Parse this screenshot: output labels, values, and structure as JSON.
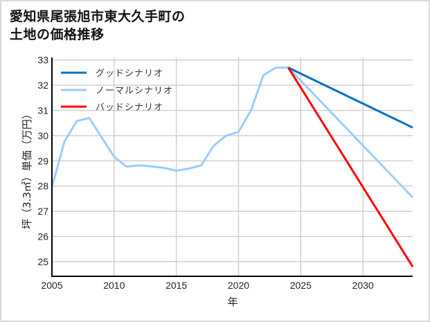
{
  "title": {
    "line1": "愛知県尾張旭市東大久手町の",
    "line2": "土地の価格推移"
  },
  "colors": {
    "good": "#0070c0",
    "normal": "#99ccff",
    "bad": "#ff0000",
    "grid": "#d0d0d0",
    "axis": "#000000",
    "border": "#d9d9d9"
  },
  "chart_data": {
    "type": "line",
    "title": "愛知県尾張旭市東大久手町の土地の価格推移",
    "xlabel": "年",
    "ylabel": "坪（3.3㎡）単価（万円）",
    "xlim": [
      2005,
      2034
    ],
    "ylim": [
      24.42,
      33.1
    ],
    "xticks": [
      2005,
      2010,
      2015,
      2020,
      2025,
      2030
    ],
    "yticks": [
      25,
      26,
      27,
      28,
      29,
      30,
      31,
      32,
      33
    ],
    "grid": true,
    "legend_position": "upper left",
    "legend": [
      "グッドシナリオ",
      "ノーマルシナリオ",
      "バッドシナリオ"
    ],
    "series": [
      {
        "name": "ノーマルシナリオ",
        "color": "#99ccff",
        "x": [
          2005,
          2006,
          2007,
          2008,
          2009,
          2010,
          2011,
          2012,
          2013,
          2014,
          2015,
          2016,
          2017,
          2018,
          2019,
          2020,
          2021,
          2022,
          2023,
          2024,
          2034
        ],
        "values": [
          27.95,
          29.76,
          30.58,
          30.7,
          29.93,
          29.16,
          28.77,
          28.82,
          28.78,
          28.72,
          28.61,
          28.69,
          28.82,
          29.6,
          30.0,
          30.15,
          31.0,
          32.4,
          32.7,
          32.7,
          27.55
        ]
      },
      {
        "name": "グッドシナリオ",
        "color": "#0070c0",
        "x": [
          2024,
          2034
        ],
        "values": [
          32.7,
          30.32
        ]
      },
      {
        "name": "バッドシナリオ",
        "color": "#ff0000",
        "x": [
          2024,
          2034
        ],
        "values": [
          32.7,
          24.8
        ]
      }
    ]
  }
}
